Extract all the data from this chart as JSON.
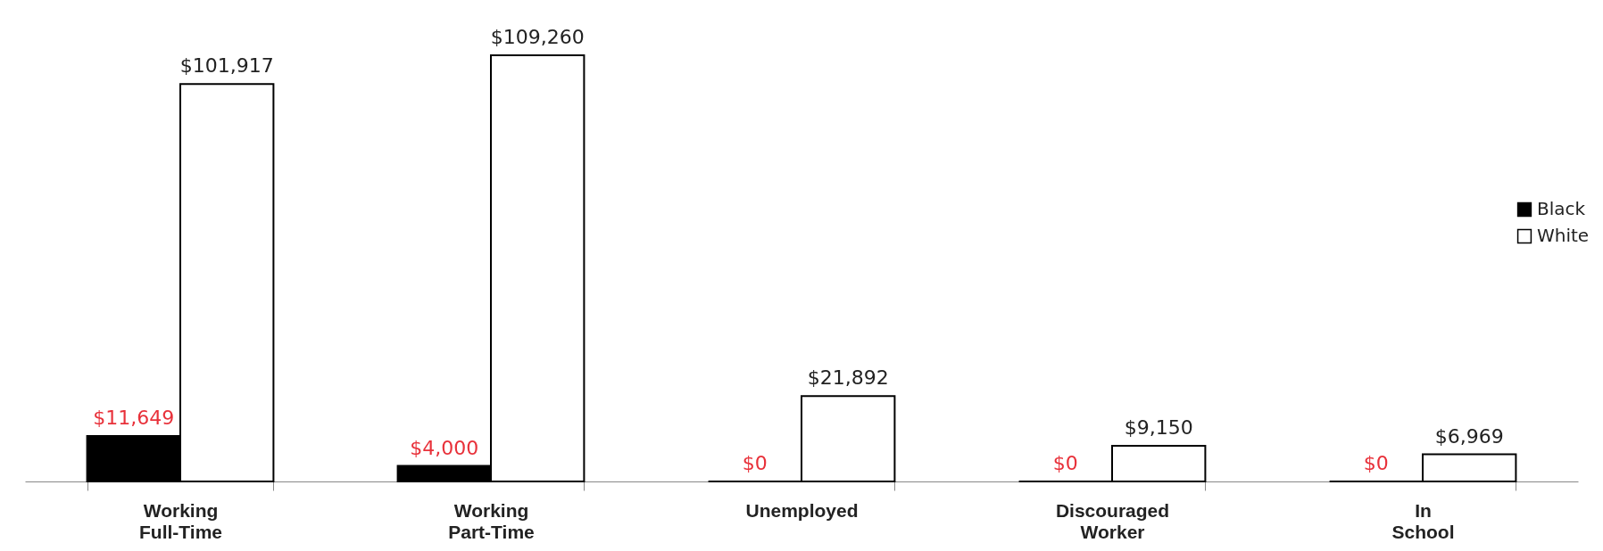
{
  "chart_data": {
    "type": "bar",
    "categories": [
      "Working Full-Time",
      "Working Part-Time",
      "Unemployed",
      "Discouraged Worker",
      "In School"
    ],
    "series": [
      {
        "name": "Black",
        "color": "#000000",
        "values": [
          11649,
          4000,
          0,
          0,
          0
        ],
        "value_labels": [
          "$11,649",
          "$4,000",
          "$0",
          "$0",
          "$0"
        ]
      },
      {
        "name": "White",
        "color": "#ffffff",
        "values": [
          101917,
          109260,
          21892,
          9150,
          6969
        ],
        "value_labels": [
          "$101,917",
          "$109,260",
          "$21,892",
          "$9,150",
          "$6,969"
        ]
      }
    ],
    "legend": "right",
    "grid": false
  }
}
